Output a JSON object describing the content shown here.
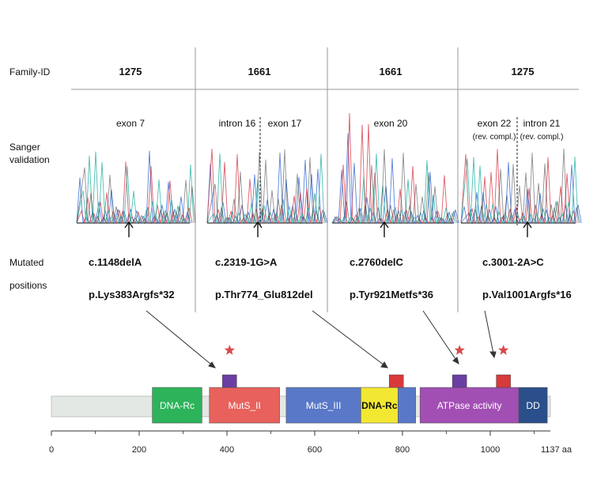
{
  "row_labels": {
    "family": "Family-ID",
    "sanger_line1": "Sanger",
    "sanger_line2": "validation",
    "mutated_line1": "Mutated",
    "mutated_line2": "positions"
  },
  "columns": [
    {
      "family_id": "1275",
      "regions": [
        "exon 7"
      ],
      "subregions": [],
      "cdna": "c.1148delA",
      "protein": "p.Lys383Argfs*32"
    },
    {
      "family_id": "1661",
      "regions": [
        "intron 16",
        "exon 17"
      ],
      "subregions": [],
      "cdna": "c.2319-1G>A",
      "protein": "p.Thr774_Glu812del"
    },
    {
      "family_id": "1661",
      "regions": [
        "exon 20"
      ],
      "subregions": [],
      "cdna": "c.2760delC",
      "protein": "p.Tyr921Metfs*36"
    },
    {
      "family_id": "1275",
      "regions": [
        "exon 22",
        "intron 21"
      ],
      "subregions": [
        "(rev. compl.)",
        "(rev. compl.)"
      ],
      "cdna": "c.3001-2A>C",
      "protein": "p.Val1001Argfs*16"
    }
  ],
  "domains": [
    {
      "label": "DNA-Rc",
      "start": 230,
      "end": 343,
      "color": "#2db35a"
    },
    {
      "label": "MutS_II",
      "start": 360,
      "end": 520,
      "color": "#e8615c"
    },
    {
      "label": "MutS_III",
      "start": 535,
      "end": 705,
      "color": "#5a78c8"
    },
    {
      "label": "DNA-Rc",
      "start": 705,
      "end": 790,
      "color": "#f2e832"
    },
    {
      "label": "",
      "start": 790,
      "end": 830,
      "color": "#5a78c8"
    },
    {
      "label": "ATPase activity",
      "start": 840,
      "end": 1065,
      "color": "#a24fb3"
    },
    {
      "label": "DD",
      "start": 1065,
      "end": 1130,
      "color": "#2a4f8a"
    }
  ],
  "mutation_markers": [
    {
      "position": 406,
      "color": "#6a3fa3",
      "star": true
    },
    {
      "position": 786,
      "color": "#d83a3a",
      "star": false
    },
    {
      "position": 930,
      "color": "#6a3fa3",
      "star": true
    },
    {
      "position": 1030,
      "color": "#d83a3a",
      "star": true
    }
  ],
  "axis": {
    "min": 0,
    "max": 1137,
    "ticks": [
      "0",
      "200",
      "400",
      "600",
      "800",
      "1000"
    ],
    "end_label": "1137 aa"
  },
  "colors": {
    "trace_blue": "#3a6fd8",
    "trace_red": "#d8434f",
    "trace_teal": "#2bb5a8",
    "trace_dark": "#222222",
    "background_bar": "#e4e8e4",
    "star": "#d94a4a"
  }
}
